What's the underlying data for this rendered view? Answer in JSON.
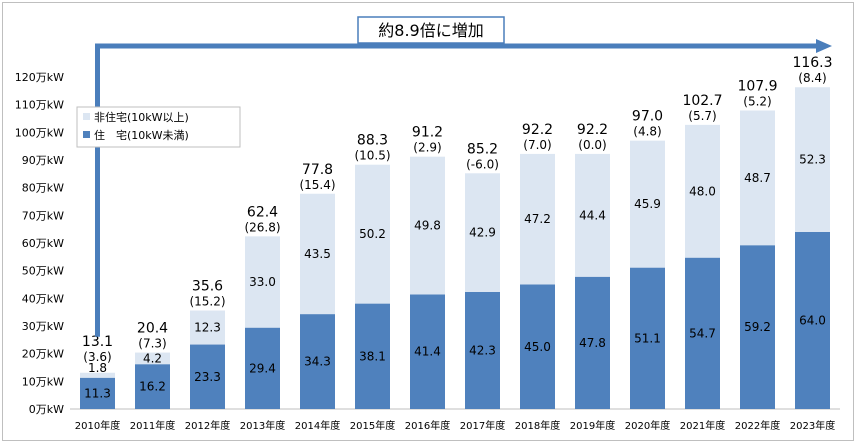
{
  "chart_data": {
    "type": "bar",
    "stacked": true,
    "categories": [
      "2010年度",
      "2011年度",
      "2012年度",
      "2013年度",
      "2014年度",
      "2015年度",
      "2016年度",
      "2017年度",
      "2018年度",
      "2019年度",
      "2020年度",
      "2021年度",
      "2022年度",
      "2023年度"
    ],
    "series": [
      {
        "name": "住　宅(10kW未満)",
        "color": "#4f81bd",
        "values": [
          11.3,
          16.2,
          23.3,
          29.4,
          34.3,
          38.1,
          41.4,
          42.3,
          45.0,
          47.8,
          51.1,
          54.7,
          59.2,
          64.0
        ],
        "labels": [
          "11.3",
          "16.2",
          "23.3",
          "29.4",
          "34.3",
          "38.1",
          "41.4",
          "42.3",
          "45.0",
          "47.8",
          "51.1",
          "54.7",
          "59.2",
          "64.0"
        ]
      },
      {
        "name": "非住宅(10kW以上)",
        "color": "#dce6f2",
        "values": [
          1.8,
          4.2,
          12.3,
          33.0,
          43.5,
          50.2,
          49.8,
          42.9,
          47.2,
          44.4,
          45.9,
          48.0,
          48.7,
          52.3
        ],
        "labels": [
          "1.8",
          "4.2",
          "12.3",
          "33.0",
          "43.5",
          "50.2",
          "49.8",
          "42.9",
          "47.2",
          "44.4",
          "45.9",
          "48.0",
          "48.7",
          "52.3"
        ]
      }
    ],
    "totals": [
      "13.1",
      "20.4",
      "35.6",
      "62.4",
      "77.8",
      "88.3",
      "91.2",
      "85.2",
      "92.2",
      "92.2",
      "97.0",
      "102.7",
      "107.9",
      "116.3"
    ],
    "growth": [
      "(3.6)",
      "(7.3)",
      "(15.2)",
      "(26.8)",
      "(15.4)",
      "(10.5)",
      "(2.9)",
      "(-6.0)",
      "(7.0)",
      "(0.0)",
      "(4.8)",
      "(5.7)",
      "(5.2)",
      "(8.4)"
    ],
    "y_ticks": [
      "0万kW",
      "10万kW",
      "20万kW",
      "30万kW",
      "40万kW",
      "50万kW",
      "60万kW",
      "70万kW",
      "80万kW",
      "90万kW",
      "100万kW",
      "110万kW",
      "120万kW"
    ],
    "ylim": [
      0,
      120
    ],
    "legend_position": "top-left",
    "annotation": "約8.9倍に増加",
    "arrow_color": "#4a7ebb"
  }
}
